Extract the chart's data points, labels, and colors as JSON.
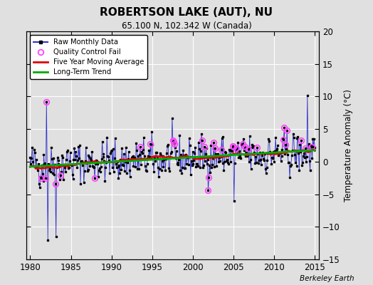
{
  "title": "ROBERTSON LAKE (AUT), NU",
  "subtitle": "65.100 N, 102.342 W (Canada)",
  "ylabel": "Temperature Anomaly (°C)",
  "watermark": "Berkeley Earth",
  "xlim": [
    1979.5,
    2015.5
  ],
  "ylim": [
    -15,
    20
  ],
  "yticks": [
    -15,
    -10,
    -5,
    0,
    5,
    10,
    15,
    20
  ],
  "xticks": [
    1980,
    1985,
    1990,
    1995,
    2000,
    2005,
    2010,
    2015
  ],
  "bg_color": "#e0e0e0",
  "raw_color": "#3333cc",
  "qc_color": "#ff44ff",
  "ma_color": "#dd0000",
  "trend_color": "#00aa00",
  "grid_color": "#ffffff",
  "seed": 42
}
